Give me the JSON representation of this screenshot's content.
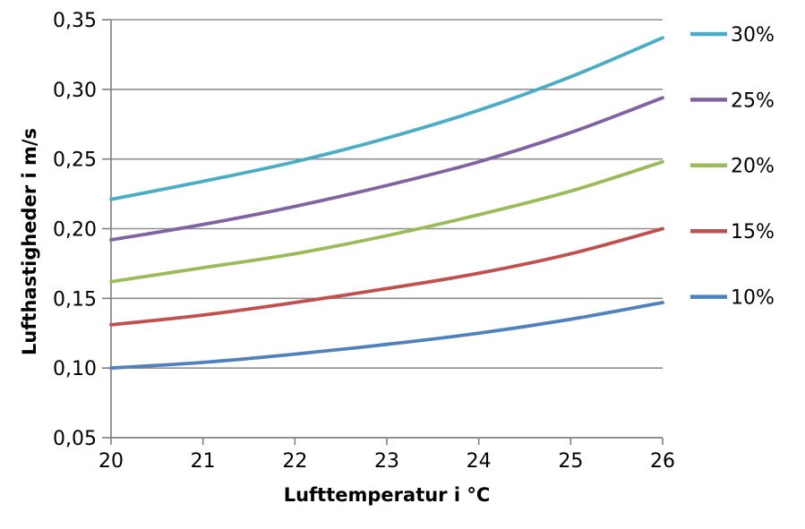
{
  "chart_data": {
    "type": "line",
    "title": "",
    "xlabel": "Lufttemperatur i °C",
    "ylabel": "Lufthastigheder i m/s",
    "xlim": [
      20,
      26
    ],
    "ylim": [
      0.05,
      0.35
    ],
    "grid": true,
    "legend_position": "right",
    "x": [
      20,
      21,
      22,
      23,
      24,
      25,
      26
    ],
    "x_tick_labels": [
      "20",
      "21",
      "22",
      "23",
      "24",
      "25",
      "26"
    ],
    "y_ticks": [
      0.35,
      0.3,
      0.25,
      0.2,
      0.15,
      0.1,
      0.05
    ],
    "y_tick_labels": [
      "0,35",
      "0,30",
      "0,25",
      "0,20",
      "0,15",
      "0,10",
      "0,05"
    ],
    "decimal_separator": ",",
    "series": [
      {
        "name": "30%",
        "color": "#4BACC6",
        "values": [
          0.221,
          0.234,
          0.248,
          0.265,
          0.285,
          0.309,
          0.337
        ]
      },
      {
        "name": "25%",
        "color": "#8064A2",
        "values": [
          0.192,
          0.203,
          0.216,
          0.231,
          0.248,
          0.269,
          0.294
        ]
      },
      {
        "name": "20%",
        "color": "#9BBB59",
        "values": [
          0.162,
          0.172,
          0.182,
          0.195,
          0.21,
          0.227,
          0.248
        ]
      },
      {
        "name": "15%",
        "color": "#C0504D",
        "values": [
          0.131,
          0.138,
          0.147,
          0.157,
          0.168,
          0.182,
          0.2
        ]
      },
      {
        "name": "10%",
        "color": "#4F81BD",
        "values": [
          0.1,
          0.104,
          0.11,
          0.117,
          0.125,
          0.135,
          0.147
        ]
      }
    ],
    "grid_color": "#8F8F8F",
    "axis_color": "#7F7F7F",
    "text_color": "#000000",
    "background_color": "#FFFFFF"
  }
}
